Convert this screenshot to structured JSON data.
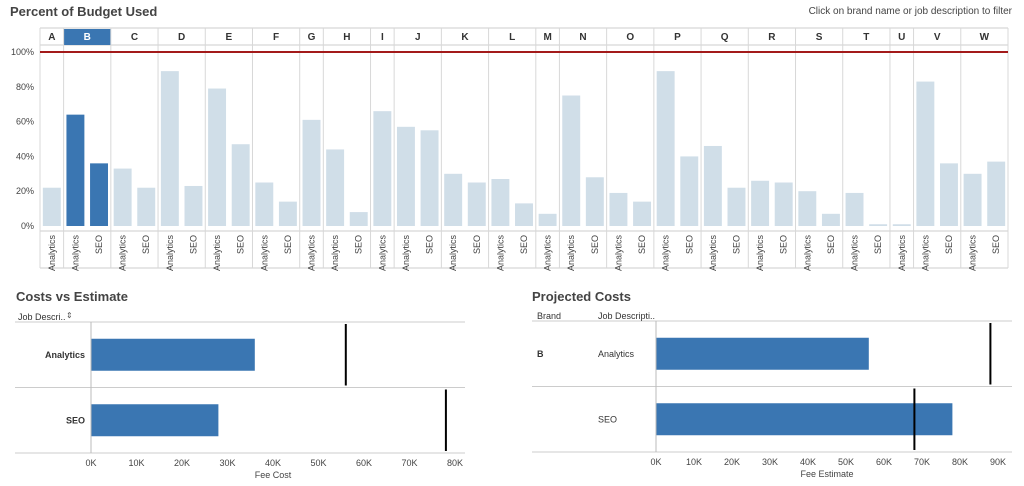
{
  "dashboard": {
    "title": "Percent of Budget Used",
    "hint": "Click on brand name or job description to filter"
  },
  "chart_data": [
    {
      "type": "bar",
      "title": "Percent of Budget Used",
      "selected_brand": "B",
      "colors": {
        "selected": "#3a76b2",
        "unselected": "#d0dee8",
        "reference": "#a31a1a"
      },
      "y_ticks": [
        "0%",
        "20%",
        "40%",
        "60%",
        "80%",
        "100%"
      ],
      "ylim": [
        0,
        100
      ],
      "reference_line": 100,
      "brands": [
        {
          "brand": "A",
          "bars": [
            {
              "label": "Analytics",
              "value": 22
            }
          ]
        },
        {
          "brand": "B",
          "bars": [
            {
              "label": "Analytics",
              "value": 64
            },
            {
              "label": "SEO",
              "value": 36
            }
          ]
        },
        {
          "brand": "C",
          "bars": [
            {
              "label": "Analytics",
              "value": 33
            },
            {
              "label": "SEO",
              "value": 22
            }
          ]
        },
        {
          "brand": "D",
          "bars": [
            {
              "label": "Analytics",
              "value": 89
            },
            {
              "label": "SEO",
              "value": 23
            }
          ]
        },
        {
          "brand": "E",
          "bars": [
            {
              "label": "Analytics",
              "value": 79
            },
            {
              "label": "SEO",
              "value": 47
            }
          ]
        },
        {
          "brand": "F",
          "bars": [
            {
              "label": "Analytics",
              "value": 25
            },
            {
              "label": "SEO",
              "value": 14
            }
          ]
        },
        {
          "brand": "G",
          "bars": [
            {
              "label": "Analytics",
              "value": 61
            }
          ]
        },
        {
          "brand": "H",
          "bars": [
            {
              "label": "Analytics",
              "value": 44
            },
            {
              "label": "SEO",
              "value": 8
            }
          ]
        },
        {
          "brand": "I",
          "bars": [
            {
              "label": "Analytics",
              "value": 66
            }
          ]
        },
        {
          "brand": "J",
          "bars": [
            {
              "label": "Analytics",
              "value": 57
            },
            {
              "label": "SEO",
              "value": 55
            }
          ]
        },
        {
          "brand": "K",
          "bars": [
            {
              "label": "Analytics",
              "value": 30
            },
            {
              "label": "SEO",
              "value": 25
            }
          ]
        },
        {
          "brand": "L",
          "bars": [
            {
              "label": "Analytics",
              "value": 27
            },
            {
              "label": "SEO",
              "value": 13
            }
          ]
        },
        {
          "brand": "M",
          "bars": [
            {
              "label": "Analytics",
              "value": 7
            }
          ]
        },
        {
          "brand": "N",
          "bars": [
            {
              "label": "Analytics",
              "value": 75
            },
            {
              "label": "SEO",
              "value": 28
            }
          ]
        },
        {
          "brand": "O",
          "bars": [
            {
              "label": "Analytics",
              "value": 19
            },
            {
              "label": "SEO",
              "value": 14
            }
          ]
        },
        {
          "brand": "P",
          "bars": [
            {
              "label": "Analytics",
              "value": 89
            },
            {
              "label": "SEO",
              "value": 40
            }
          ]
        },
        {
          "brand": "Q",
          "bars": [
            {
              "label": "Analytics",
              "value": 46
            },
            {
              "label": "SEO",
              "value": 22
            }
          ]
        },
        {
          "brand": "R",
          "bars": [
            {
              "label": "Analytics",
              "value": 26
            },
            {
              "label": "SEO",
              "value": 25
            }
          ]
        },
        {
          "brand": "S",
          "bars": [
            {
              "label": "Analytics",
              "value": 20
            },
            {
              "label": "SEO",
              "value": 7
            }
          ]
        },
        {
          "brand": "T",
          "bars": [
            {
              "label": "Analytics",
              "value": 19
            },
            {
              "label": "SEO",
              "value": 1
            }
          ]
        },
        {
          "brand": "U",
          "bars": [
            {
              "label": "Analytics",
              "value": 1
            }
          ]
        },
        {
          "brand": "V",
          "bars": [
            {
              "label": "Analytics",
              "value": 83
            },
            {
              "label": "SEO",
              "value": 36
            }
          ]
        },
        {
          "brand": "W",
          "bars": [
            {
              "label": "Analytics",
              "value": 30
            },
            {
              "label": "SEO",
              "value": 37
            }
          ]
        }
      ]
    },
    {
      "type": "bar",
      "orientation": "horizontal",
      "title": "Costs vs Estimate",
      "row_header": "Job Descri..",
      "categories": [
        "Analytics",
        "SEO"
      ],
      "values": [
        36000,
        28000
      ],
      "reference_values": [
        56000,
        78000
      ],
      "xlabel": "Fee Cost",
      "x_ticks": [
        "0K",
        "10K",
        "20K",
        "30K",
        "40K",
        "50K",
        "60K",
        "70K",
        "80K"
      ],
      "xlim": [
        0,
        80000
      ],
      "colors": {
        "bar": "#3a76b2",
        "reference": "#000000"
      }
    },
    {
      "type": "bar",
      "orientation": "horizontal",
      "title": "Projected Costs",
      "row_headers": [
        "Brand",
        "Job Descripti.."
      ],
      "brand": "B",
      "categories": [
        "Analytics",
        "SEO"
      ],
      "values": [
        56000,
        78000
      ],
      "reference_values": [
        88000,
        68000
      ],
      "xlabel": "Fee Estimate",
      "x_ticks": [
        "0K",
        "10K",
        "20K",
        "30K",
        "40K",
        "50K",
        "60K",
        "70K",
        "80K",
        "90K"
      ],
      "xlim": [
        0,
        90000
      ],
      "colors": {
        "bar": "#3a76b2",
        "reference": "#000000"
      }
    }
  ]
}
